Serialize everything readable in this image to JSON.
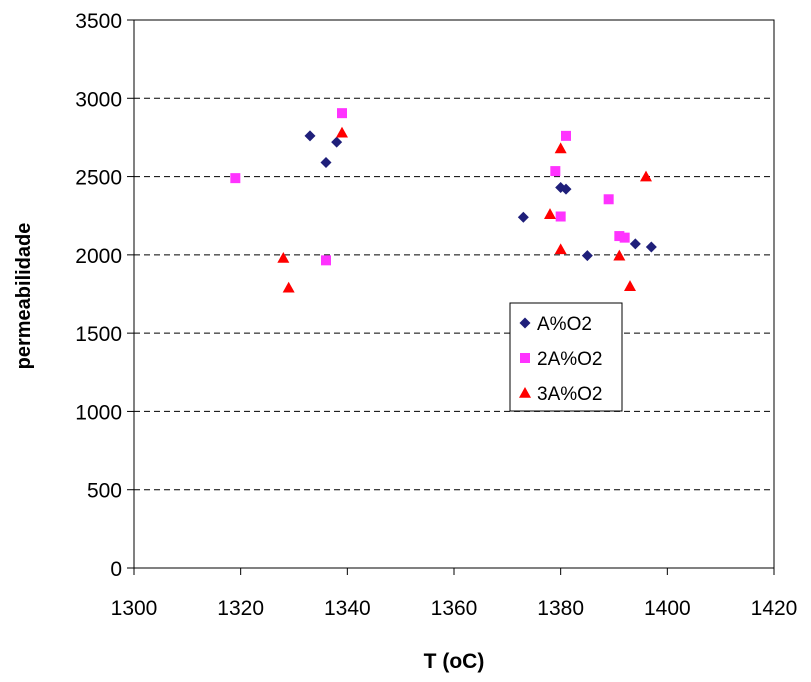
{
  "chart_data": {
    "type": "scatter",
    "title": "",
    "xlabel": "T (oC)",
    "ylabel": "permeabilidade",
    "xlim": [
      1300,
      1420
    ],
    "ylim": [
      0,
      3500
    ],
    "x_ticks": [
      1300,
      1320,
      1340,
      1360,
      1380,
      1400,
      1420
    ],
    "y_ticks": [
      0,
      500,
      1000,
      1500,
      2000,
      2500,
      3000,
      3500
    ],
    "grid": "horizontal dashed",
    "legend_position": "inside-right",
    "series": [
      {
        "name": "A%O2",
        "marker": "diamond",
        "color": "#1f1f7a",
        "points": [
          [
            1333,
            2760
          ],
          [
            1336,
            2590
          ],
          [
            1338,
            2720
          ],
          [
            1373,
            2240
          ],
          [
            1380,
            2430
          ],
          [
            1381,
            2420
          ],
          [
            1385,
            1995
          ],
          [
            1394,
            2070
          ],
          [
            1397,
            2050
          ]
        ]
      },
      {
        "name": "2A%O2",
        "marker": "square",
        "color": "#ff33ff",
        "points": [
          [
            1319,
            2490
          ],
          [
            1336,
            1965
          ],
          [
            1339,
            2905
          ],
          [
            1379,
            2535
          ],
          [
            1380,
            2245
          ],
          [
            1381,
            2760
          ],
          [
            1389,
            2355
          ],
          [
            1391,
            2120
          ],
          [
            1392,
            2110
          ]
        ]
      },
      {
        "name": "3A%O2",
        "marker": "triangle",
        "color": "#ff0000",
        "points": [
          [
            1328,
            1980
          ],
          [
            1329,
            1790
          ],
          [
            1339,
            2780
          ],
          [
            1378,
            2260
          ],
          [
            1380,
            2680
          ],
          [
            1380,
            2035
          ],
          [
            1391,
            1995
          ],
          [
            1393,
            1800
          ],
          [
            1396,
            2500
          ]
        ]
      }
    ]
  }
}
